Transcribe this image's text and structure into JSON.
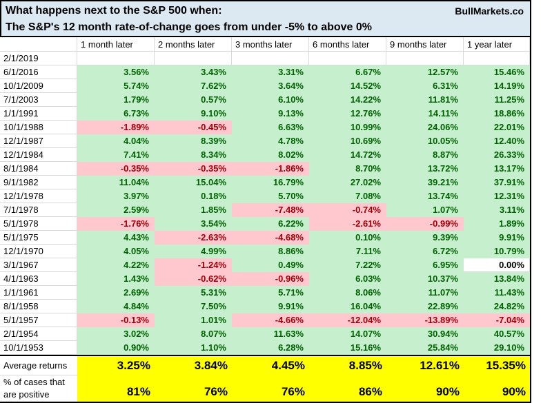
{
  "header": {
    "title_line1": "What happens next to the S&P 500 when:",
    "title_line2": "The S&P's 12 month rate-of-change goes from under -5% to above 0%",
    "brand": "BullMarkets.co"
  },
  "chart_data": {
    "type": "table",
    "title": "What happens next to the S&P 500 when: The S&P's 12 month rate-of-change goes from under -5% to above 0%",
    "columns": [
      "1 month later",
      "2 months later",
      "3 months later",
      "6 months later",
      "9 months later",
      "1 year later"
    ],
    "rows": [
      {
        "date": "2/1/2019",
        "values": [
          "",
          "",
          "",
          "",
          "",
          ""
        ]
      },
      {
        "date": "6/1/2016",
        "values": [
          "3.56%",
          "3.43%",
          "3.31%",
          "6.67%",
          "12.57%",
          "15.46%"
        ]
      },
      {
        "date": "10/1/2009",
        "values": [
          "5.74%",
          "7.62%",
          "3.64%",
          "14.52%",
          "6.31%",
          "14.19%"
        ]
      },
      {
        "date": "7/1/2003",
        "values": [
          "1.79%",
          "0.57%",
          "6.10%",
          "14.22%",
          "11.81%",
          "11.25%"
        ]
      },
      {
        "date": "1/1/1991",
        "values": [
          "6.73%",
          "9.10%",
          "9.13%",
          "12.76%",
          "14.11%",
          "18.86%"
        ]
      },
      {
        "date": "10/1/1988",
        "values": [
          "-1.89%",
          "-0.45%",
          "6.63%",
          "10.99%",
          "24.06%",
          "22.01%"
        ]
      },
      {
        "date": "12/1/1987",
        "values": [
          "4.04%",
          "8.39%",
          "4.78%",
          "10.69%",
          "10.05%",
          "12.40%"
        ]
      },
      {
        "date": "12/1/1984",
        "values": [
          "7.41%",
          "8.34%",
          "8.02%",
          "14.72%",
          "8.87%",
          "26.33%"
        ]
      },
      {
        "date": "8/1/1984",
        "values": [
          "-0.35%",
          "-0.35%",
          "-1.86%",
          "8.70%",
          "13.72%",
          "13.17%"
        ]
      },
      {
        "date": "9/1/1982",
        "values": [
          "11.04%",
          "15.04%",
          "16.79%",
          "27.02%",
          "39.21%",
          "37.91%"
        ]
      },
      {
        "date": "12/1/1978",
        "values": [
          "3.97%",
          "0.18%",
          "5.70%",
          "7.08%",
          "13.74%",
          "12.31%"
        ]
      },
      {
        "date": "7/1/1978",
        "values": [
          "2.59%",
          "1.85%",
          "-7.48%",
          "-0.74%",
          "1.07%",
          "3.11%"
        ]
      },
      {
        "date": "5/1/1978",
        "values": [
          "-1.76%",
          "3.54%",
          "6.22%",
          "-2.61%",
          "-0.99%",
          "1.89%"
        ]
      },
      {
        "date": "5/1/1975",
        "values": [
          "4.43%",
          "-2.63%",
          "-4.68%",
          "0.10%",
          "9.39%",
          "9.91%"
        ]
      },
      {
        "date": "12/1/1970",
        "values": [
          "4.05%",
          "4.99%",
          "8.86%",
          "7.11%",
          "6.72%",
          "10.79%"
        ]
      },
      {
        "date": "3/1/1967",
        "values": [
          "4.22%",
          "-1.24%",
          "0.49%",
          "7.22%",
          "6.95%",
          "0.00%"
        ]
      },
      {
        "date": "4/1/1963",
        "values": [
          "1.43%",
          "-0.62%",
          "-0.96%",
          "6.03%",
          "10.37%",
          "13.84%"
        ]
      },
      {
        "date": "1/1/1961",
        "values": [
          "2.69%",
          "5.31%",
          "5.71%",
          "8.06%",
          "11.07%",
          "11.43%"
        ]
      },
      {
        "date": "8/1/1958",
        "values": [
          "4.84%",
          "7.50%",
          "9.91%",
          "16.04%",
          "22.89%",
          "24.82%"
        ]
      },
      {
        "date": "5/1/1957",
        "values": [
          "-0.13%",
          "1.01%",
          "-4.66%",
          "-12.04%",
          "-13.89%",
          "-7.04%"
        ]
      },
      {
        "date": "2/1/1954",
        "values": [
          "3.02%",
          "8.07%",
          "11.63%",
          "14.07%",
          "30.94%",
          "40.57%"
        ]
      },
      {
        "date": "10/1/1953",
        "values": [
          "0.90%",
          "1.10%",
          "6.28%",
          "15.16%",
          "25.84%",
          "29.10%"
        ]
      }
    ],
    "summary": {
      "average": {
        "label": "Average returns",
        "values": [
          "3.25%",
          "3.84%",
          "4.45%",
          "8.85%",
          "12.61%",
          "15.35%"
        ]
      },
      "percent_positive": {
        "label_lines": [
          "% of cases that",
          "are positive"
        ],
        "values": [
          "81%",
          "76%",
          "76%",
          "86%",
          "90%",
          "90%"
        ]
      }
    }
  },
  "colors": {
    "positive_bg": "#C6EFCE",
    "positive_text": "#006100",
    "negative_bg": "#FFC7CE",
    "negative_text": "#9C0006",
    "zero_bg": "#FFFFFF",
    "title_bg": "#DCE9F3",
    "summary_bg": "#FFFF00",
    "gridline": "#D9D9D9",
    "border": "#000000"
  }
}
